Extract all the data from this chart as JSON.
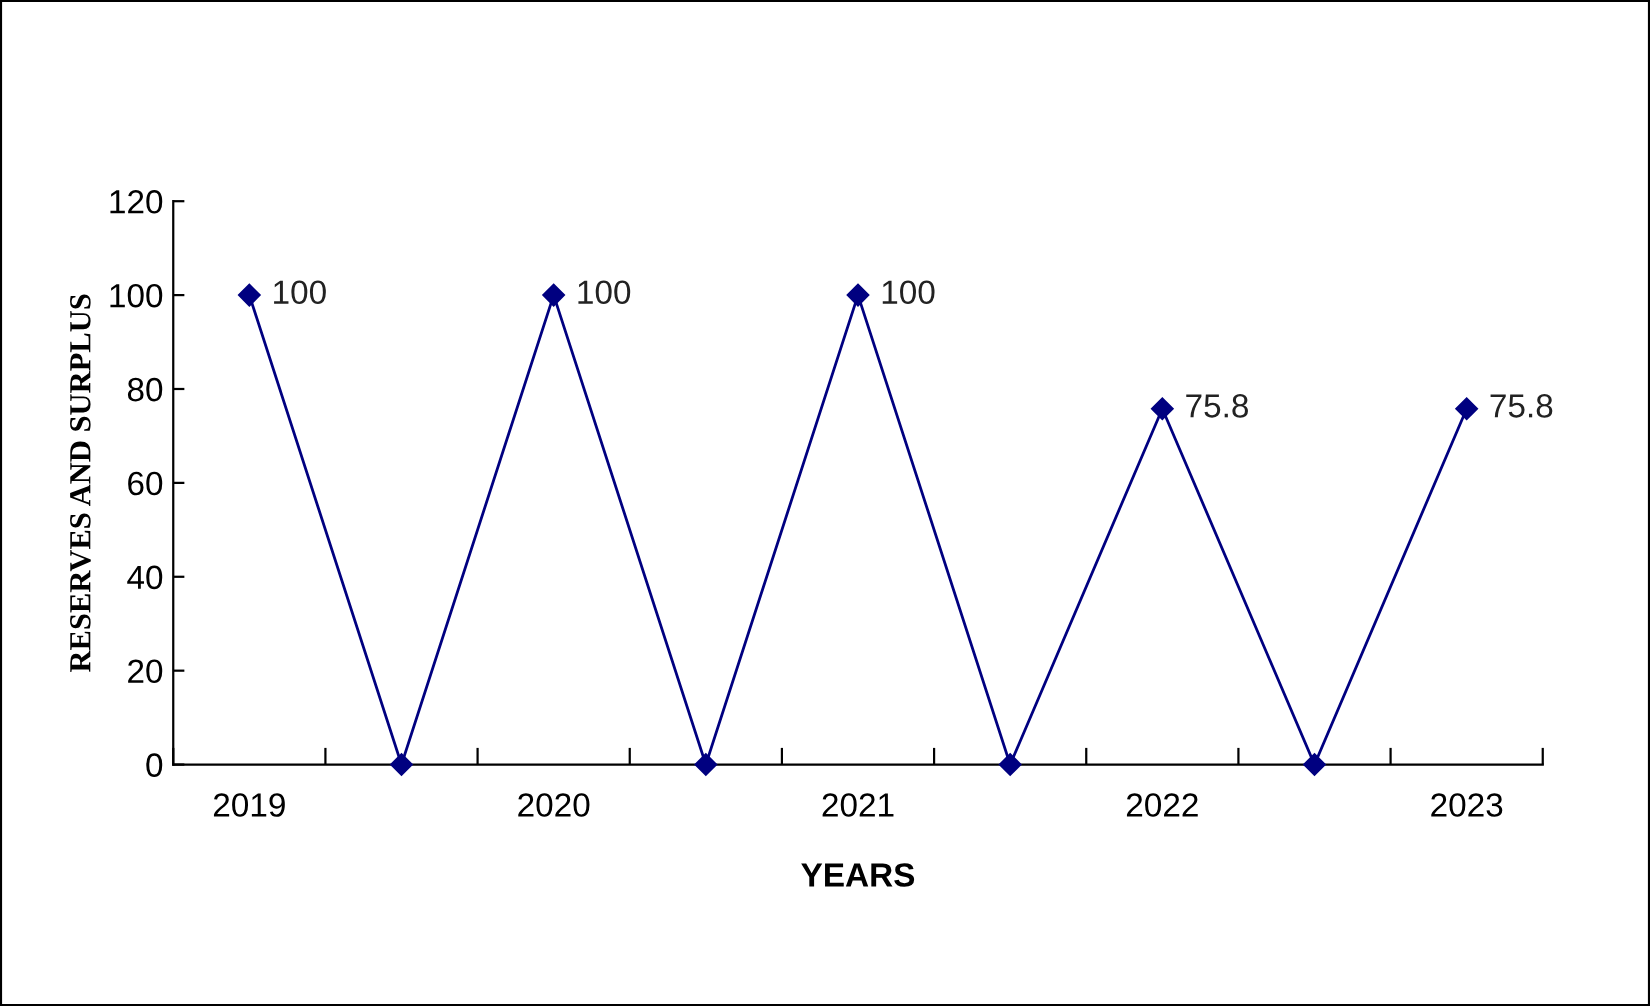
{
  "chart_data": {
    "type": "line",
    "xlabel": "YEARS",
    "ylabel": "RESERVES AND SURPLUS",
    "categories": [
      "2019",
      null,
      "2020",
      null,
      "2021",
      null,
      "2022",
      null,
      "2023"
    ],
    "series": [
      {
        "color": "#000080",
        "values": [
          100,
          0,
          100,
          0,
          100,
          0,
          75.8,
          0,
          75.8
        ],
        "value_labels": [
          "100",
          null,
          "100",
          null,
          "100",
          null,
          "75.8",
          null,
          "75.8"
        ]
      }
    ],
    "ylim": [
      0,
      120
    ],
    "yticks": [
      0,
      20,
      40,
      60,
      80,
      100,
      120
    ],
    "marker": "diamond",
    "line_style": "solid",
    "grid": false,
    "legend": false
  }
}
